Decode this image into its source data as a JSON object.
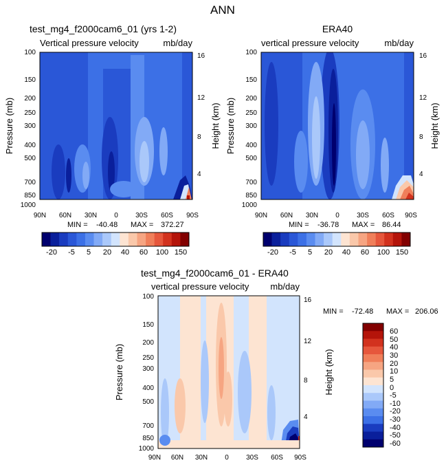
{
  "figure_title": "ANN",
  "chart_data": [
    {
      "type": "heatmap",
      "title_left": "test_mg4_f2000cam6_01 (yrs 1-2)",
      "subtitle_left": "Vertical pressure velocity",
      "subtitle_right": "mb/day",
      "xlabel": "",
      "ylabel": "Pressure (mb)",
      "ylabel_right": "Height (km)",
      "x_ticks": [
        "90N",
        "60N",
        "30N",
        "0",
        "30S",
        "60S",
        "90S"
      ],
      "y_ticks": [
        1000,
        850,
        700,
        500,
        400,
        300,
        250,
        200,
        150,
        100
      ],
      "y_ticks_right": [
        4,
        8,
        12,
        16
      ],
      "ylim": [
        1000,
        100
      ],
      "stats": {
        "min": "-40.48",
        "max": "372.27",
        "min_label": "MIN =",
        "max_label": "MAX ="
      },
      "colorbar_levels": [
        -30,
        -25,
        -20,
        -15,
        -10,
        -5,
        0,
        5,
        10,
        20,
        30,
        40,
        50,
        60,
        80,
        100,
        150
      ],
      "colorbar_labels": [
        "-20",
        "-5",
        "5",
        "20",
        "40",
        "60",
        "100",
        "150"
      ]
    },
    {
      "type": "heatmap",
      "title_left": "ERA40",
      "subtitle_left": "vertical pressure velocity",
      "subtitle_right": "mb/day",
      "xlabel": "",
      "ylabel": "Pressure (mb)",
      "ylabel_right": "Height (km)",
      "x_ticks": [
        "90N",
        "60N",
        "30N",
        "0",
        "30S",
        "60S",
        "90S"
      ],
      "y_ticks": [
        1000,
        850,
        700,
        500,
        400,
        300,
        250,
        200,
        150,
        100
      ],
      "y_ticks_right": [
        4,
        8,
        12,
        16
      ],
      "ylim": [
        1000,
        100
      ],
      "stats": {
        "min": "-36.78",
        "max": "86.44",
        "min_label": "MIN =",
        "max_label": "MAX ="
      },
      "colorbar_levels": [
        -30,
        -25,
        -20,
        -15,
        -10,
        -5,
        0,
        5,
        10,
        20,
        30,
        40,
        50,
        60,
        80,
        100,
        150
      ],
      "colorbar_labels": [
        "-20",
        "-5",
        "5",
        "20",
        "40",
        "60",
        "100",
        "150"
      ]
    },
    {
      "type": "heatmap",
      "title_left": "test_mg4_f2000cam6_01 - ERA40",
      "subtitle_left": "vertical pressure velocity",
      "subtitle_right": "mb/day",
      "xlabel": "",
      "ylabel": "Pressure (mb)",
      "ylabel_right": "Height (km)",
      "x_ticks": [
        "90N",
        "60N",
        "30N",
        "0",
        "30S",
        "60S",
        "90S"
      ],
      "y_ticks": [
        1000,
        850,
        700,
        500,
        400,
        300,
        250,
        200,
        150,
        100
      ],
      "y_ticks_right": [
        4,
        8,
        12,
        16
      ],
      "ylim": [
        1000,
        100
      ],
      "stats": {
        "min": "-72.48",
        "max": "206.06",
        "min_label": "MIN =",
        "max_label": "MAX ="
      },
      "colorbar_levels": [
        60,
        50,
        40,
        30,
        20,
        10,
        5,
        0,
        -5,
        -10,
        -20,
        -30,
        -40,
        -50,
        -60
      ],
      "colorbar_labels": [
        "60",
        "50",
        "40",
        "30",
        "20",
        "10",
        "5",
        "0",
        "-5",
        "-10",
        "-20",
        "-30",
        "-40",
        "-50",
        "-60"
      ]
    }
  ],
  "colors": {
    "blue_scale": [
      "#00006e",
      "#0a1f9b",
      "#1a3cbf",
      "#2a57d7",
      "#3c70e6",
      "#5a8cf0",
      "#82aaf6",
      "#aac8fa",
      "#d2e4fd"
    ],
    "red_scale": [
      "#fde4d2",
      "#fac8aa",
      "#f6a582",
      "#f07f5a",
      "#e6573c",
      "#d2321e",
      "#b4140a",
      "#820000"
    ],
    "diff_scale": [
      "#820000",
      "#b4140a",
      "#d2321e",
      "#e6573c",
      "#f07f5a",
      "#f6a582",
      "#fac8aa",
      "#fde4d2",
      "#d2e4fd",
      "#aac8fa",
      "#82aaf6",
      "#5a8cf0",
      "#3c70e6",
      "#1a3cbf",
      "#0a1f9b",
      "#00006e"
    ]
  }
}
